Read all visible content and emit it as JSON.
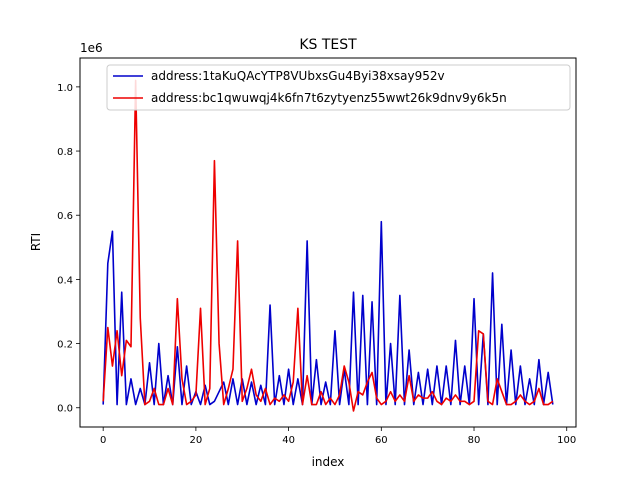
{
  "chart_data": {
    "type": "line",
    "title": "KS TEST",
    "xlabel": "index",
    "ylabel": "RTI",
    "y_offset_label": "1e6",
    "xlim": [
      -5,
      102
    ],
    "ylim": [
      -0.06,
      1.09
    ],
    "x_ticks": [
      0,
      20,
      40,
      60,
      80,
      100
    ],
    "x_tick_labels": [
      "0",
      "20",
      "40",
      "60",
      "80",
      "100"
    ],
    "y_ticks": [
      0.0,
      0.2,
      0.4,
      0.6,
      0.8,
      1.0
    ],
    "y_tick_labels": [
      "0.0",
      "0.2",
      "0.4",
      "0.6",
      "0.8",
      "1.0"
    ],
    "grid": false,
    "legend_placement": "upper-right",
    "series": [
      {
        "name": "address:1taKuQAcYTP8VUbxsGu4Byi38xsay952v",
        "color": "#0000cc",
        "values": [
          0.01,
          0.45,
          0.55,
          0.01,
          0.36,
          0.01,
          0.09,
          0.01,
          0.06,
          0.01,
          0.14,
          0.01,
          0.2,
          0.01,
          0.1,
          0.01,
          0.19,
          0.01,
          0.13,
          0.01,
          0.05,
          0.01,
          0.07,
          0.01,
          0.02,
          0.05,
          0.08,
          0.01,
          0.09,
          0.01,
          0.09,
          0.01,
          0.08,
          0.01,
          0.07,
          0.01,
          0.32,
          0.01,
          0.1,
          0.01,
          0.12,
          0.01,
          0.09,
          0.01,
          0.52,
          0.01,
          0.15,
          0.01,
          0.08,
          0.01,
          0.24,
          0.01,
          0.12,
          0.01,
          0.36,
          0.01,
          0.35,
          0.01,
          0.33,
          0.01,
          0.58,
          0.01,
          0.2,
          0.01,
          0.35,
          0.01,
          0.18,
          0.01,
          0.11,
          0.01,
          0.12,
          0.01,
          0.13,
          0.01,
          0.13,
          0.01,
          0.21,
          0.01,
          0.13,
          0.01,
          0.34,
          0.01,
          0.23,
          0.01,
          0.42,
          0.01,
          0.26,
          0.01,
          0.18,
          0.01,
          0.13,
          0.01,
          0.09,
          0.01,
          0.15,
          0.01,
          0.11,
          0.01
        ]
      },
      {
        "name": "address:bc1qwuwqj4k6fn7t6zytyenz55wwt26k9dnv9y6k5n",
        "color": "#ee0000",
        "values": [
          0.02,
          0.25,
          0.13,
          0.24,
          0.1,
          0.21,
          0.19,
          1.02,
          0.28,
          0.01,
          0.02,
          0.06,
          0.01,
          0.01,
          0.06,
          0.01,
          0.34,
          0.09,
          0.01,
          0.02,
          0.04,
          0.31,
          0.01,
          0.06,
          0.77,
          0.2,
          0.01,
          0.06,
          0.12,
          0.52,
          0.02,
          0.06,
          0.12,
          0.04,
          0.02,
          0.06,
          0.01,
          0.03,
          0.02,
          0.04,
          0.02,
          0.08,
          0.31,
          0.01,
          0.1,
          0.01,
          0.01,
          0.05,
          0.01,
          0.03,
          0.01,
          0.04,
          0.13,
          0.08,
          -0.01,
          0.05,
          0.04,
          0.08,
          0.11,
          0.03,
          0.01,
          0.02,
          0.05,
          0.02,
          0.04,
          0.02,
          0.1,
          0.02,
          0.04,
          0.03,
          0.03,
          0.05,
          0.02,
          0.01,
          0.03,
          0.02,
          0.04,
          0.02,
          0.02,
          0.01,
          0.02,
          0.24,
          0.23,
          0.02,
          0.01,
          0.09,
          0.05,
          0.01,
          0.01,
          0.02,
          0.04,
          0.02,
          0.01,
          0.02,
          0.06,
          0.01,
          0.01,
          0.02
        ]
      }
    ]
  }
}
